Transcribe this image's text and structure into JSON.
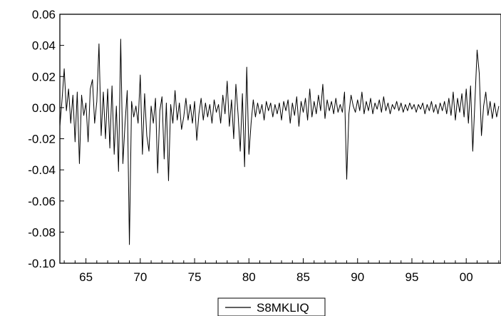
{
  "chart_data": {
    "type": "line",
    "title": "",
    "xlabel": "",
    "ylabel": "",
    "xlim": [
      1962.6,
      2003.2
    ],
    "ylim": [
      -0.1,
      0.06
    ],
    "x_tick_labels": [
      {
        "value": 1965,
        "label": "65"
      },
      {
        "value": 1970,
        "label": "70"
      },
      {
        "value": 1975,
        "label": "75"
      },
      {
        "value": 1980,
        "label": "80"
      },
      {
        "value": 1985,
        "label": "85"
      },
      {
        "value": 1990,
        "label": "90"
      },
      {
        "value": 1995,
        "label": "95"
      },
      {
        "value": 2000,
        "label": "00"
      }
    ],
    "y_tick_labels": [
      {
        "value": 0.06,
        "label": "0.06"
      },
      {
        "value": 0.04,
        "label": "0.04"
      },
      {
        "value": 0.02,
        "label": "0.02"
      },
      {
        "value": 0.0,
        "label": "0.00"
      },
      {
        "value": -0.02,
        "label": "-0.02"
      },
      {
        "value": -0.04,
        "label": "-0.04"
      },
      {
        "value": -0.06,
        "label": "-0.06"
      },
      {
        "value": -0.08,
        "label": "-0.08"
      },
      {
        "value": -0.1,
        "label": "-0.10"
      }
    ],
    "grid": false,
    "legend_position": "bottom-center",
    "series": [
      {
        "name": "S8MKLIQ",
        "color": "#000000",
        "points": [
          [
            1962.6,
            -0.012
          ],
          [
            1962.8,
            0.005
          ],
          [
            1963.0,
            0.025
          ],
          [
            1963.2,
            -0.002
          ],
          [
            1963.4,
            0.012
          ],
          [
            1963.6,
            -0.01
          ],
          [
            1963.8,
            0.008
          ],
          [
            1964.0,
            -0.022
          ],
          [
            1964.2,
            0.01
          ],
          [
            1964.4,
            -0.036
          ],
          [
            1964.6,
            0.008
          ],
          [
            1964.8,
            -0.005
          ],
          [
            1965.0,
            0.003
          ],
          [
            1965.2,
            -0.022
          ],
          [
            1965.4,
            0.012
          ],
          [
            1965.6,
            0.018
          ],
          [
            1965.8,
            -0.01
          ],
          [
            1966.0,
            0.004
          ],
          [
            1966.2,
            0.041
          ],
          [
            1966.4,
            -0.018
          ],
          [
            1966.6,
            0.01
          ],
          [
            1966.8,
            -0.02
          ],
          [
            1967.0,
            0.012
          ],
          [
            1967.2,
            -0.026
          ],
          [
            1967.4,
            0.014
          ],
          [
            1967.6,
            -0.03
          ],
          [
            1967.8,
            0.001
          ],
          [
            1968.0,
            -0.041
          ],
          [
            1968.2,
            0.044
          ],
          [
            1968.4,
            -0.036
          ],
          [
            1968.6,
            -0.01
          ],
          [
            1968.8,
            0.011
          ],
          [
            1969.0,
            -0.088
          ],
          [
            1969.2,
            0.004
          ],
          [
            1969.4,
            -0.006
          ],
          [
            1969.6,
            0.001
          ],
          [
            1969.8,
            -0.01
          ],
          [
            1970.0,
            0.021
          ],
          [
            1970.2,
            -0.03
          ],
          [
            1970.4,
            0.009
          ],
          [
            1970.6,
            -0.018
          ],
          [
            1970.8,
            -0.028
          ],
          [
            1971.0,
            0.001
          ],
          [
            1971.2,
            -0.01
          ],
          [
            1971.4,
            0.006
          ],
          [
            1971.6,
            -0.042
          ],
          [
            1971.8,
            -0.002
          ],
          [
            1972.0,
            0.007
          ],
          [
            1972.2,
            -0.033
          ],
          [
            1972.4,
            0.003
          ],
          [
            1972.6,
            -0.047
          ],
          [
            1972.8,
            0.002
          ],
          [
            1973.0,
            -0.01
          ],
          [
            1973.2,
            0.011
          ],
          [
            1973.4,
            -0.008
          ],
          [
            1973.6,
            0.003
          ],
          [
            1973.8,
            -0.014
          ],
          [
            1974.0,
            -0.006
          ],
          [
            1974.2,
            0.006
          ],
          [
            1974.4,
            -0.008
          ],
          [
            1974.6,
            0.002
          ],
          [
            1974.8,
            -0.01
          ],
          [
            1975.0,
            0.004
          ],
          [
            1975.2,
            -0.021
          ],
          [
            1975.4,
            -0.004
          ],
          [
            1975.6,
            0.006
          ],
          [
            1975.8,
            -0.008
          ],
          [
            1976.0,
            0.003
          ],
          [
            1976.2,
            -0.006
          ],
          [
            1976.4,
            0.002
          ],
          [
            1976.6,
            -0.01
          ],
          [
            1976.8,
            0.005
          ],
          [
            1977.0,
            -0.003
          ],
          [
            1977.2,
            0.002
          ],
          [
            1977.4,
            -0.01
          ],
          [
            1977.6,
            0.008
          ],
          [
            1977.8,
            -0.004
          ],
          [
            1978.0,
            0.017
          ],
          [
            1978.2,
            -0.012
          ],
          [
            1978.4,
            0.005
          ],
          [
            1978.6,
            -0.02
          ],
          [
            1978.8,
            0.015
          ],
          [
            1979.0,
            -0.004
          ],
          [
            1979.2,
            -0.028
          ],
          [
            1979.4,
            0.009
          ],
          [
            1979.6,
            -0.038
          ],
          [
            1979.8,
            0.026
          ],
          [
            1980.0,
            -0.03
          ],
          [
            1980.2,
            -0.01
          ],
          [
            1980.4,
            0.005
          ],
          [
            1980.6,
            -0.006
          ],
          [
            1980.8,
            0.003
          ],
          [
            1981.0,
            -0.004
          ],
          [
            1981.2,
            0.002
          ],
          [
            1981.4,
            -0.008
          ],
          [
            1981.6,
            0.004
          ],
          [
            1981.8,
            -0.002
          ],
          [
            1982.0,
            0.003
          ],
          [
            1982.2,
            -0.006
          ],
          [
            1982.4,
            0.002
          ],
          [
            1982.6,
            -0.004
          ],
          [
            1982.8,
            0.003
          ],
          [
            1983.0,
            -0.008
          ],
          [
            1983.2,
            0.004
          ],
          [
            1983.4,
            -0.002
          ],
          [
            1983.6,
            0.005
          ],
          [
            1983.8,
            -0.01
          ],
          [
            1984.0,
            0.003
          ],
          [
            1984.2,
            -0.005
          ],
          [
            1984.4,
            0.007
          ],
          [
            1984.6,
            -0.012
          ],
          [
            1984.8,
            0.004
          ],
          [
            1985.0,
            -0.003
          ],
          [
            1985.2,
            0.006
          ],
          [
            1985.4,
            -0.008
          ],
          [
            1985.6,
            0.012
          ],
          [
            1985.8,
            -0.006
          ],
          [
            1986.0,
            0.004
          ],
          [
            1986.2,
            -0.004
          ],
          [
            1986.4,
            0.008
          ],
          [
            1986.6,
            -0.002
          ],
          [
            1986.8,
            0.015
          ],
          [
            1987.0,
            -0.007
          ],
          [
            1987.2,
            0.005
          ],
          [
            1987.4,
            -0.002
          ],
          [
            1987.6,
            0.004
          ],
          [
            1987.8,
            -0.004
          ],
          [
            1988.0,
            0.006
          ],
          [
            1988.2,
            -0.003
          ],
          [
            1988.4,
            0.002
          ],
          [
            1988.6,
            -0.003
          ],
          [
            1988.8,
            0.01
          ],
          [
            1989.0,
            -0.046
          ],
          [
            1989.2,
            -0.004
          ],
          [
            1989.4,
            0.008
          ],
          [
            1989.6,
            0.001
          ],
          [
            1989.8,
            -0.003
          ],
          [
            1990.0,
            0.005
          ],
          [
            1990.2,
            -0.002
          ],
          [
            1990.4,
            0.01
          ],
          [
            1990.6,
            -0.004
          ],
          [
            1990.8,
            0.004
          ],
          [
            1991.0,
            -0.002
          ],
          [
            1991.2,
            0.006
          ],
          [
            1991.4,
            -0.004
          ],
          [
            1991.6,
            0.003
          ],
          [
            1991.8,
            -0.001
          ],
          [
            1992.0,
            0.005
          ],
          [
            1992.2,
            -0.003
          ],
          [
            1992.4,
            0.007
          ],
          [
            1992.6,
            -0.002
          ],
          [
            1992.8,
            0.003
          ],
          [
            1993.0,
            -0.004
          ],
          [
            1993.2,
            0.002
          ],
          [
            1993.4,
            -0.001
          ],
          [
            1993.6,
            0.004
          ],
          [
            1993.8,
            -0.002
          ],
          [
            1994.0,
            0.003
          ],
          [
            1994.2,
            -0.003
          ],
          [
            1994.4,
            0.002
          ],
          [
            1994.6,
            -0.002
          ],
          [
            1994.8,
            0.003
          ],
          [
            1995.0,
            -0.001
          ],
          [
            1995.2,
            0.002
          ],
          [
            1995.4,
            -0.003
          ],
          [
            1995.6,
            0.002
          ],
          [
            1995.8,
            -0.001
          ],
          [
            1996.0,
            0.003
          ],
          [
            1996.2,
            -0.004
          ],
          [
            1996.4,
            0.002
          ],
          [
            1996.6,
            -0.002
          ],
          [
            1996.8,
            0.004
          ],
          [
            1997.0,
            -0.003
          ],
          [
            1997.2,
            0.002
          ],
          [
            1997.4,
            -0.004
          ],
          [
            1997.6,
            0.003
          ],
          [
            1997.8,
            -0.002
          ],
          [
            1998.0,
            0.004
          ],
          [
            1998.2,
            -0.004
          ],
          [
            1998.4,
            0.006
          ],
          [
            1998.6,
            -0.005
          ],
          [
            1998.8,
            0.01
          ],
          [
            1999.0,
            -0.008
          ],
          [
            1999.2,
            0.006
          ],
          [
            1999.4,
            -0.003
          ],
          [
            1999.6,
            0.009
          ],
          [
            1999.8,
            -0.006
          ],
          [
            2000.0,
            0.012
          ],
          [
            2000.2,
            -0.01
          ],
          [
            2000.4,
            0.014
          ],
          [
            2000.6,
            -0.028
          ],
          [
            2000.8,
            0.004
          ],
          [
            2001.0,
            0.037
          ],
          [
            2001.2,
            0.022
          ],
          [
            2001.4,
            -0.018
          ],
          [
            2001.6,
            0.001
          ],
          [
            2001.8,
            0.01
          ],
          [
            2002.0,
            -0.005
          ],
          [
            2002.2,
            0.004
          ],
          [
            2002.4,
            -0.007
          ],
          [
            2002.6,
            0.003
          ],
          [
            2002.8,
            -0.006
          ],
          [
            2003.0,
            0.001
          ]
        ]
      }
    ]
  }
}
